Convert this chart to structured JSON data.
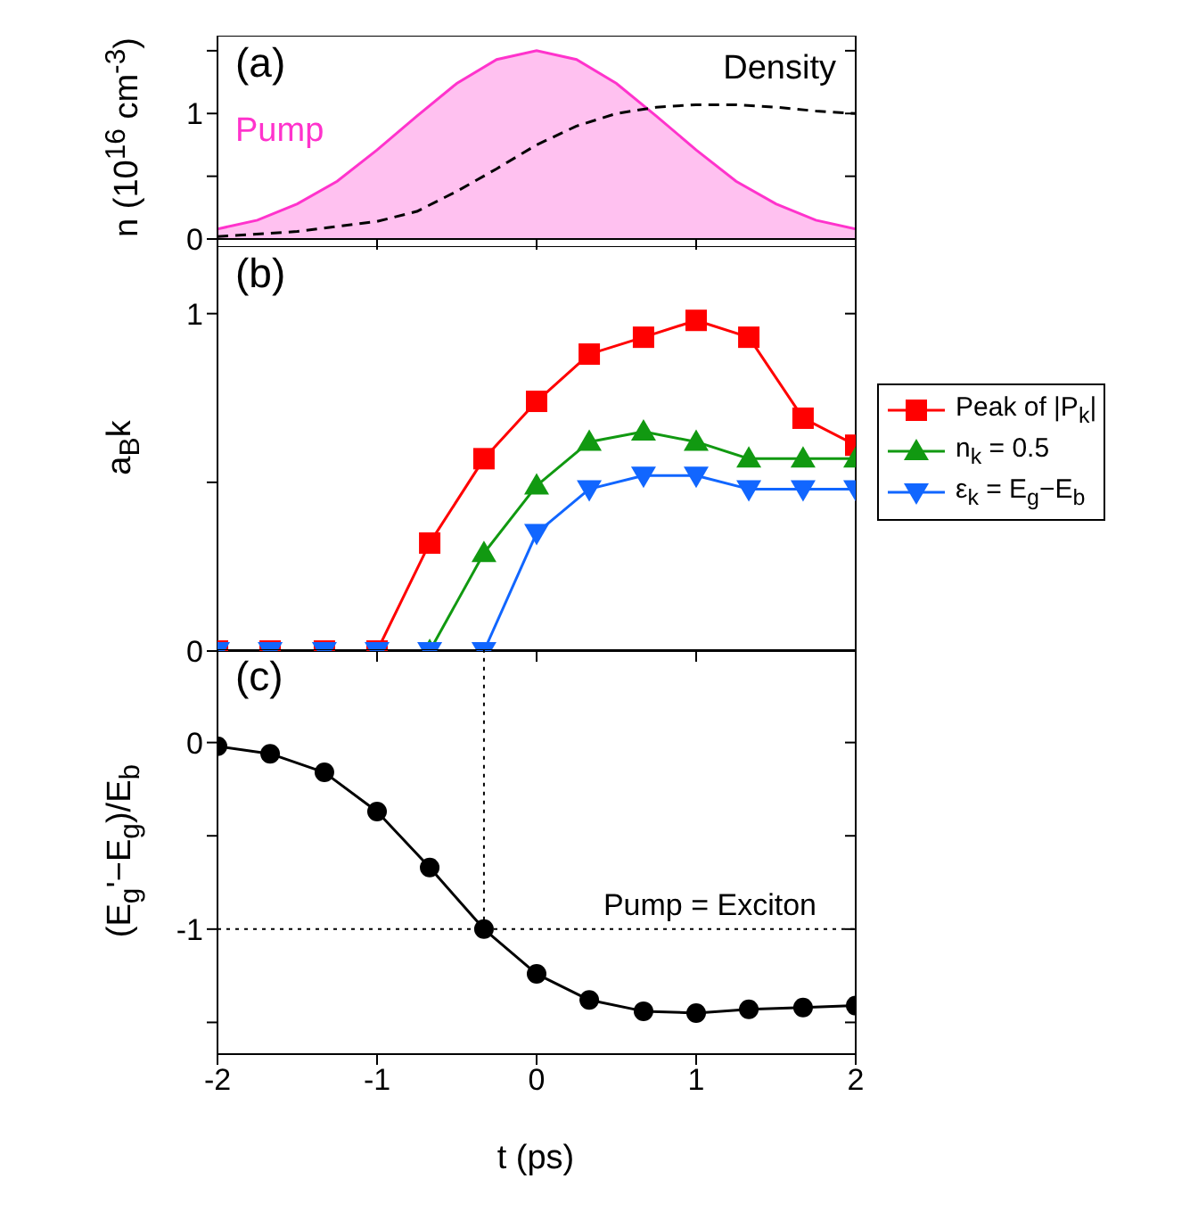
{
  "chart_data": [
    {
      "type": "line",
      "annotations": [
        "(a)"
      ],
      "ylabel": "n (10$^{16}$ cm$^{-3}$)",
      "xlim": [
        -2,
        2
      ],
      "xticks": [
        -2,
        -1,
        0,
        1,
        2
      ],
      "ylim": [
        0,
        1.62
      ],
      "yticks": [
        0,
        {
          "value": 0.5,
          "label": null
        },
        1,
        {
          "value": 1.5,
          "label": null
        }
      ],
      "tick_labels": "y",
      "marker": "none",
      "series": [
        {
          "name": "Pump",
          "type": "area",
          "color": "#ff33cc",
          "x": [
            -2,
            -1.75,
            -1.5,
            -1.25,
            -1,
            -0.75,
            -0.5,
            -0.25,
            0,
            0.25,
            0.5,
            0.75,
            1,
            1.25,
            1.5,
            1.75,
            2
          ],
          "values": [
            0.08,
            0.15,
            0.28,
            0.46,
            0.71,
            0.98,
            1.24,
            1.43,
            1.5,
            1.43,
            1.24,
            0.98,
            0.71,
            0.46,
            0.28,
            0.15,
            0.08
          ]
        },
        {
          "name": "Density",
          "color": "#000000",
          "line_style": "dashed",
          "x": [
            -2,
            -1.5,
            -1,
            -0.75,
            -0.5,
            -0.25,
            0,
            0.25,
            0.5,
            0.75,
            1,
            1.25,
            1.5,
            1.75,
            2
          ],
          "values": [
            0.02,
            0.06,
            0.14,
            0.22,
            0.38,
            0.56,
            0.75,
            0.9,
            1.0,
            1.05,
            1.07,
            1.07,
            1.05,
            1.02,
            1.0
          ]
        }
      ]
    },
    {
      "type": "line",
      "annotations": [
        "(b)"
      ],
      "ylabel": "a$_{B}$k",
      "xlim": [
        -2,
        2
      ],
      "xticks": [
        -2,
        -1,
        0,
        1,
        2
      ],
      "ylim": [
        0,
        1.2
      ],
      "yticks": [
        0,
        {
          "value": 0.5,
          "label": null
        },
        1
      ],
      "tick_labels": "y",
      "legend": "right",
      "x": [
        -2,
        -1.67,
        -1.33,
        -1,
        -0.67,
        -0.33,
        0,
        0.33,
        0.67,
        1,
        1.33,
        1.67,
        2
      ],
      "series": [
        {
          "name": "Peak of |P$_{k}$|",
          "color": "#ff0000",
          "marker": "square",
          "values": [
            0,
            0,
            0,
            0,
            0.32,
            0.57,
            0.74,
            0.88,
            0.93,
            0.98,
            0.93,
            0.69,
            0.61
          ]
        },
        {
          "name": "n$_{k}$ = 0.5",
          "color": "#119911",
          "marker": "triangle",
          "values": [
            null,
            null,
            null,
            null,
            0,
            0.29,
            0.49,
            0.62,
            0.65,
            0.62,
            0.57,
            0.57,
            0.57
          ]
        },
        {
          "name": "ε$_{k}$ = E$_{g}$−E$_{b}$",
          "color": "#1166ff",
          "marker": "triangle-down",
          "values": [
            0,
            0,
            0,
            0,
            0,
            0,
            0.35,
            0.48,
            0.52,
            0.52,
            0.48,
            0.48,
            0.48
          ]
        }
      ]
    },
    {
      "type": "line",
      "annotations": [
        "(c)"
      ],
      "xlabel": "t (ps)",
      "ylabel": "(E$_{g}$'−E$_{g}$)/E$_{b}$",
      "xlim": [
        -2,
        2
      ],
      "xticks": [
        -2,
        -1,
        0,
        1,
        2
      ],
      "ylim": [
        -1.67,
        0.5
      ],
      "yticks": [
        {
          "value": -1.5,
          "label": null
        },
        -1,
        {
          "value": -0.5,
          "label": null
        },
        0
      ],
      "marker": "circle",
      "color": "#000000",
      "x": [
        -2,
        -1.67,
        -1.33,
        -1,
        -0.67,
        -0.33,
        0,
        0.33,
        0.67,
        1,
        1.33,
        1.67,
        2
      ],
      "values": [
        -0.02,
        -0.06,
        -0.16,
        -0.37,
        -0.67,
        -1.0,
        -1.24,
        -1.38,
        -1.44,
        -1.45,
        -1.43,
        -1.42,
        -1.41
      ],
      "ref_lines": [
        {
          "axis": "y",
          "value": -1,
          "label": "Pump = Exciton",
          "line_style": "dotted"
        },
        {
          "axis": "x",
          "value": -0.33,
          "line_style": "dotted"
        }
      ]
    }
  ]
}
